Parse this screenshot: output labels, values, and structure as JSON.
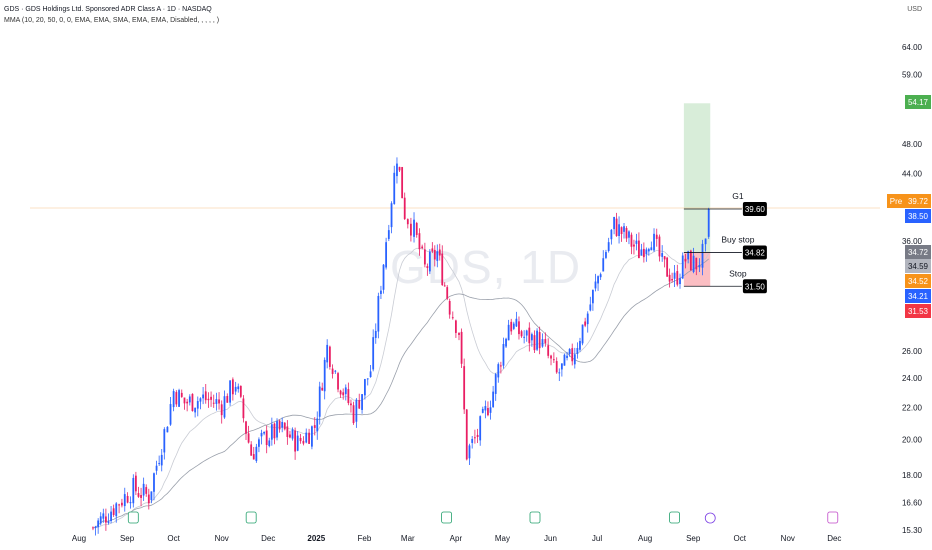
{
  "header": {
    "title": "GDS · GDS Holdings Ltd. Sponsored ADR Class A · 1D · NASDAQ",
    "indicator": "MMA (10, 20, 50, 0, 0, EMA, EMA, SMA, EMA, EMA, Disabled, , , , , )",
    "currency": "USD",
    "watermark": "GDS, 1D"
  },
  "chart_data": {
    "type": "candlestick",
    "x_ticks": [
      "Aug",
      "Sep",
      "Oct",
      "Nov",
      "Dec",
      "2025",
      "Feb",
      "Mar",
      "Apr",
      "May",
      "Jun",
      "Jul",
      "Aug",
      "Sep",
      "Oct",
      "Nov",
      "Dec"
    ],
    "y_ticks": [
      "64.00",
      "59.00",
      "48.00",
      "44.00",
      "36.00",
      "26.00",
      "24.00",
      "22.00",
      "20.00",
      "18.00",
      "16.60",
      "15.30"
    ],
    "y_scale": "log",
    "ylim": [
      15.3,
      66
    ],
    "trade_setup": {
      "entry_label": "Buy stop",
      "entry": 34.82,
      "target_label": "G1",
      "target": 39.6,
      "stop_label": "Stop",
      "stop": 31.5,
      "profit_zone_top": 54.17
    },
    "price_labels": [
      {
        "text": "54.17",
        "value": 54.17,
        "color": "#4caf50"
      },
      {
        "text": "Pre",
        "value": 39.72,
        "color": "#f7931a"
      },
      {
        "text": "39.72",
        "value": 39.72,
        "color": "#f7931a"
      },
      {
        "text": "38.50",
        "value": 38.5,
        "color": "#2962ff"
      },
      {
        "text": "34.72",
        "value": 34.72,
        "color": "#787b86"
      },
      {
        "text": "34.59",
        "value": 34.59,
        "color": "#b2b5be"
      },
      {
        "text": "34.52",
        "value": 34.52,
        "color": "#f7931a"
      },
      {
        "text": "34.21",
        "value": 34.21,
        "color": "#2962ff"
      },
      {
        "text": "31.53",
        "value": 31.53,
        "color": "#f23645"
      }
    ],
    "close_path": [
      {
        "d": "2024-08-10",
        "c": 15.4
      },
      {
        "d": "2024-08-25",
        "c": 16.5
      },
      {
        "d": "2024-09-05",
        "c": 17.3
      },
      {
        "d": "2024-09-15",
        "c": 16.9
      },
      {
        "d": "2024-09-25",
        "c": 20.4
      },
      {
        "d": "2024-10-01",
        "c": 23.1
      },
      {
        "d": "2024-10-08",
        "c": 22.3
      },
      {
        "d": "2024-10-20",
        "c": 22.6
      },
      {
        "d": "2024-11-01",
        "c": 22.2
      },
      {
        "d": "2024-11-10",
        "c": 23.7
      },
      {
        "d": "2024-11-20",
        "c": 19.2
      },
      {
        "d": "2024-11-30",
        "c": 20.2
      },
      {
        "d": "2024-12-10",
        "c": 20.6
      },
      {
        "d": "2024-12-20",
        "c": 19.8
      },
      {
        "d": "2024-12-31",
        "c": 20.8
      },
      {
        "d": "2025-01-08",
        "c": 26.3
      },
      {
        "d": "2025-01-15",
        "c": 23.9
      },
      {
        "d": "2025-01-25",
        "c": 21.6
      },
      {
        "d": "2025-02-05",
        "c": 24.6
      },
      {
        "d": "2025-02-15",
        "c": 36.2
      },
      {
        "d": "2025-02-22",
        "c": 46.5
      },
      {
        "d": "2025-02-27",
        "c": 39.2
      },
      {
        "d": "2025-03-05",
        "c": 37.2
      },
      {
        "d": "2025-03-12",
        "c": 33.2
      },
      {
        "d": "2025-03-20",
        "c": 34.8
      },
      {
        "d": "2025-03-28",
        "c": 29.7
      },
      {
        "d": "2025-04-03",
        "c": 27.6
      },
      {
        "d": "2025-04-08",
        "c": 19.2
      },
      {
        "d": "2025-04-15",
        "c": 20.3
      },
      {
        "d": "2025-04-25",
        "c": 23.1
      },
      {
        "d": "2025-05-05",
        "c": 28.3
      },
      {
        "d": "2025-05-15",
        "c": 27.1
      },
      {
        "d": "2025-05-25",
        "c": 26.9
      },
      {
        "d": "2025-06-05",
        "c": 24.2
      },
      {
        "d": "2025-06-15",
        "c": 25.6
      },
      {
        "d": "2025-06-25",
        "c": 29.1
      },
      {
        "d": "2025-07-05",
        "c": 34.2
      },
      {
        "d": "2025-07-12",
        "c": 37.8
      },
      {
        "d": "2025-07-20",
        "c": 36.4
      },
      {
        "d": "2025-07-28",
        "c": 34.9
      },
      {
        "d": "2025-08-05",
        "c": 36.6
      },
      {
        "d": "2025-08-12",
        "c": 33.6
      },
      {
        "d": "2025-08-20",
        "c": 32.1
      },
      {
        "d": "2025-08-27",
        "c": 34.1
      },
      {
        "d": "2025-09-03",
        "c": 33.6
      },
      {
        "d": "2025-09-09",
        "c": 35.1
      },
      {
        "d": "2025-09-11",
        "c": 38.5
      }
    ]
  }
}
